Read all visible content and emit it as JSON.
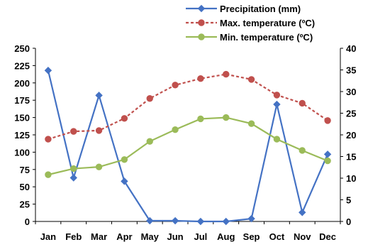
{
  "chart_data": {
    "type": "line",
    "categories": [
      "Jan",
      "Feb",
      "Mar",
      "Apr",
      "May",
      "Jun",
      "Jul",
      "Aug",
      "Sep",
      "Oct",
      "Nov",
      "Dec"
    ],
    "y_left": {
      "ylim": [
        0,
        250
      ],
      "ticks": [
        "0",
        "25",
        "50",
        "75",
        "100",
        "125",
        "150",
        "175",
        "200",
        "225",
        "250"
      ]
    },
    "y_right": {
      "ylim": [
        0,
        40
      ],
      "ticks": [
        "0",
        "5",
        "10",
        "15",
        "20",
        "25",
        "30",
        "35",
        "40"
      ]
    },
    "legend_position": "top-right",
    "grid": false,
    "series": [
      {
        "name": "Precipitation (mm)",
        "axis": "left",
        "color": "#4472C4",
        "marker": "diamond",
        "dashed": false,
        "values": [
          218,
          63,
          182,
          58,
          1,
          1,
          0,
          0,
          4,
          169,
          13,
          97
        ]
      },
      {
        "name": "Max. temperature (ºC)",
        "axis": "right",
        "color": "#C0504D",
        "marker": "circle",
        "dashed": true,
        "values": [
          19,
          20.8,
          21,
          23.8,
          28.4,
          31.5,
          33,
          34,
          32.8,
          29.2,
          27.3,
          23.3
        ]
      },
      {
        "name": "Min. temperature (ºC)",
        "axis": "right",
        "color": "#9BBB59",
        "marker": "circle",
        "dashed": false,
        "values": [
          10.8,
          12.2,
          12.6,
          14.3,
          18.5,
          21.2,
          23.7,
          24,
          22.6,
          19,
          16.4,
          14
        ]
      }
    ]
  }
}
